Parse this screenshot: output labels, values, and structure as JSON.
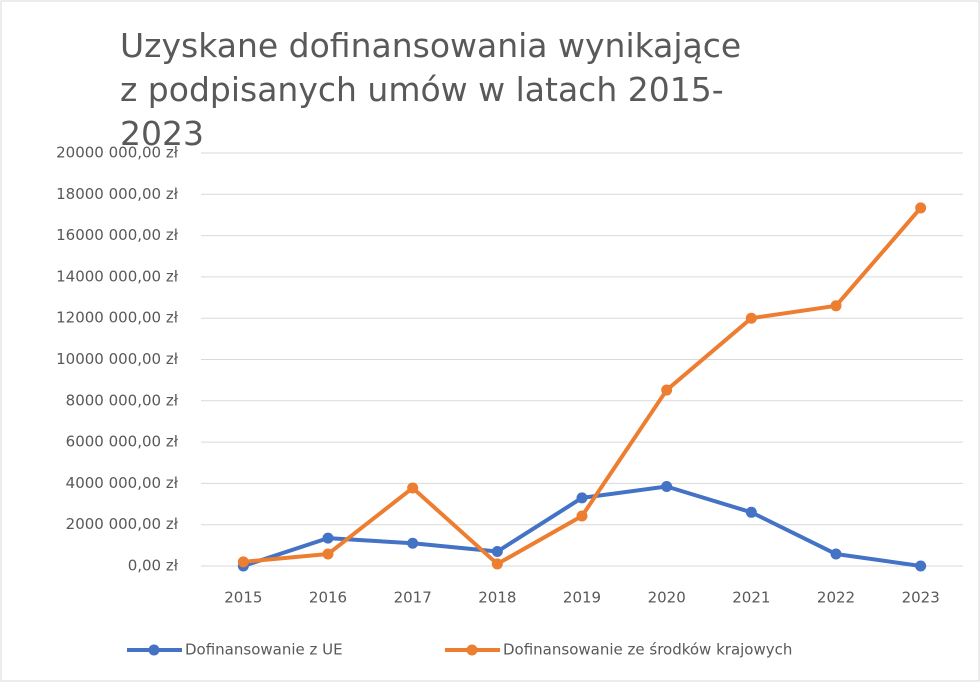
{
  "chart_data": {
    "type": "line",
    "title": "Uzyskane dofinansowania wynikające z podpisanych umów w latach 2015-2023",
    "categories": [
      "2015",
      "2016",
      "2017",
      "2018",
      "2019",
      "2020",
      "2021",
      "2022",
      "2023"
    ],
    "series": [
      {
        "name": "Dofinansowanie z UE",
        "color": "#4472c4",
        "values": [
          0,
          1350000,
          1100000,
          700000,
          3300000,
          3850000,
          2600000,
          580000,
          0
        ]
      },
      {
        "name": "Dofinansowanie ze środków krajowych",
        "color": "#ed7d31",
        "values": [
          200000,
          580000,
          3780000,
          100000,
          2420000,
          8520000,
          12000000,
          12600000,
          17340000
        ]
      }
    ],
    "ylim": [
      0,
      20000000
    ],
    "yticks": [
      {
        "value": 0,
        "label": "0,00 zł"
      },
      {
        "value": 2000000,
        "label": "2000 000,00 zł"
      },
      {
        "value": 4000000,
        "label": "4000 000,00 zł"
      },
      {
        "value": 6000000,
        "label": "6000 000,00 zł"
      },
      {
        "value": 8000000,
        "label": "8000 000,00 zł"
      },
      {
        "value": 10000000,
        "label": "10000 000,00 zł"
      },
      {
        "value": 12000000,
        "label": "12000 000,00 zł"
      },
      {
        "value": 14000000,
        "label": "14000 000,00 zł"
      },
      {
        "value": 16000000,
        "label": "16000 000,00 zł"
      },
      {
        "value": 18000000,
        "label": "18000 000,00 zł"
      },
      {
        "value": 20000000,
        "label": "20000 000,00 zł"
      }
    ],
    "grid": true,
    "legend": "bottom"
  }
}
